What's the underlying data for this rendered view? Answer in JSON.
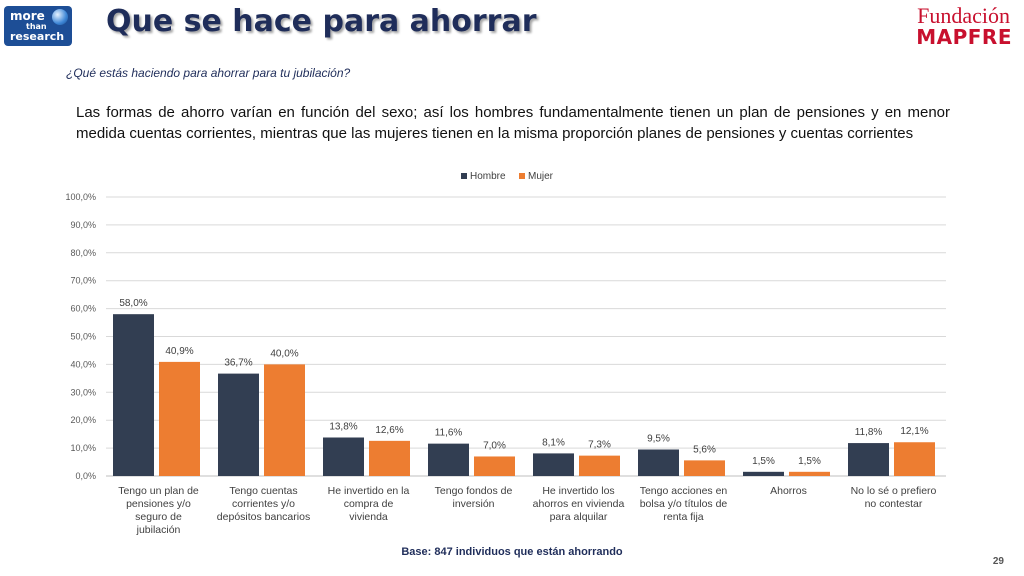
{
  "logo": {
    "line1": "more",
    "line2": "than",
    "line3": "research"
  },
  "title": "Que se hace para ahorrar",
  "brand": {
    "top": "Fundación",
    "bottom": "MAPFRE"
  },
  "question": "¿Qué estás haciendo para ahorrar para tu jubilación?",
  "summary": "Las formas de ahorro varían en función del sexo; así los hombres fundamentalmente tienen un plan de pensiones y en menor medida cuentas corrientes, mientras que las mujeres tienen en la misma proporción planes de pensiones y cuentas corrientes",
  "footer": {
    "base": "Base: 847 individuos que están ahorrando",
    "page": "29"
  },
  "colors": {
    "hombre": "#323e52",
    "mujer": "#ed7d31"
  },
  "chart_data": {
    "type": "bar",
    "ylim": [
      0,
      100
    ],
    "yticks": [
      "0,0%",
      "10,0%",
      "20,0%",
      "30,0%",
      "40,0%",
      "50,0%",
      "60,0%",
      "70,0%",
      "80,0%",
      "90,0%",
      "100,0%"
    ],
    "grid": true,
    "legend": "top",
    "categories": [
      [
        "Tengo un plan  de",
        "pensiones  y/o",
        "seguro de",
        "jubilación"
      ],
      [
        "Tengo cuentas",
        "corrientes y/o",
        "depósitos bancarios"
      ],
      [
        "He invertido en la",
        "compra de",
        "vivienda"
      ],
      [
        "Tengo fondos de",
        "inversión"
      ],
      [
        "He invertido los",
        "ahorros en vivienda",
        "para alquilar"
      ],
      [
        "Tengo acciones en",
        "bolsa y/o títulos de",
        "renta fija"
      ],
      [
        "Ahorros"
      ],
      [
        "No lo sé o prefiero",
        "no contestar"
      ]
    ],
    "series": [
      {
        "name": "Hombre",
        "values": [
          58.0,
          36.7,
          13.8,
          11.6,
          8.1,
          9.5,
          1.5,
          11.8
        ],
        "labels": [
          "58,0%",
          "36,7%",
          "13,8%",
          "11,6%",
          "8,1%",
          "9,5%",
          "1,5%",
          "11,8%"
        ]
      },
      {
        "name": "Mujer",
        "values": [
          40.9,
          40.0,
          12.6,
          7.0,
          7.3,
          5.6,
          1.5,
          12.1
        ],
        "labels": [
          "40,9%",
          "40,0%",
          "12,6%",
          "7,0%",
          "7,3%",
          "5,6%",
          "1,5%",
          "12,1%"
        ]
      }
    ]
  }
}
